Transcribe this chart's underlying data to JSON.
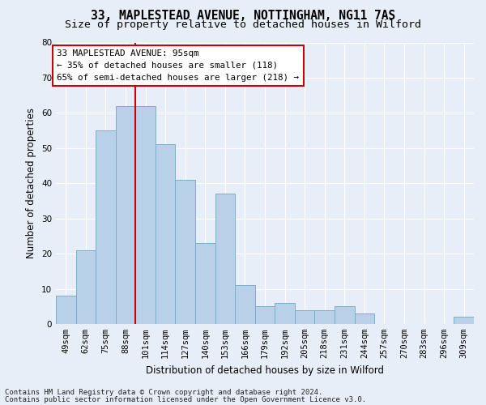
{
  "title": "33, MAPLESTEAD AVENUE, NOTTINGHAM, NG11 7AS",
  "subtitle": "Size of property relative to detached houses in Wilford",
  "xlabel": "Distribution of detached houses by size in Wilford",
  "ylabel": "Number of detached properties",
  "categories": [
    "49sqm",
    "62sqm",
    "75sqm",
    "88sqm",
    "101sqm",
    "114sqm",
    "127sqm",
    "140sqm",
    "153sqm",
    "166sqm",
    "179sqm",
    "192sqm",
    "205sqm",
    "218sqm",
    "231sqm",
    "244sqm",
    "257sqm",
    "270sqm",
    "283sqm",
    "296sqm",
    "309sqm"
  ],
  "values": [
    8,
    21,
    55,
    62,
    62,
    51,
    41,
    23,
    37,
    11,
    5,
    6,
    4,
    4,
    5,
    3,
    0,
    0,
    0,
    0,
    2
  ],
  "bar_color": "#b8d0e8",
  "bar_edgecolor": "#7aafc8",
  "vline_x": 3.5,
  "vline_color": "#cc0000",
  "ylim": [
    0,
    80
  ],
  "yticks": [
    0,
    10,
    20,
    30,
    40,
    50,
    60,
    70,
    80
  ],
  "annotation_text": "33 MAPLESTEAD AVENUE: 95sqm\n← 35% of detached houses are smaller (118)\n65% of semi-detached houses are larger (218) →",
  "annotation_box_facecolor": "#ffffff",
  "annotation_box_edgecolor": "#cc0000",
  "footer_line1": "Contains HM Land Registry data © Crown copyright and database right 2024.",
  "footer_line2": "Contains public sector information licensed under the Open Government Licence v3.0.",
  "background_color": "#e8eef7",
  "grid_color": "#ffffff",
  "title_fontsize": 10.5,
  "subtitle_fontsize": 9.5,
  "axis_label_fontsize": 8.5,
  "tick_fontsize": 7.5,
  "annotation_fontsize": 7.8,
  "footer_fontsize": 6.5
}
